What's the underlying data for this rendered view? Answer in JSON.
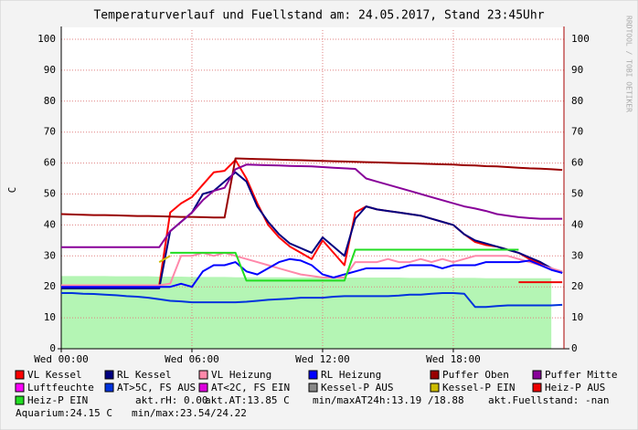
{
  "chart_data": {
    "type": "line",
    "title": "Temperaturverlauf und Fuellstand am: 24.05.2017, Stand 23:45Uhr",
    "y_label": "C",
    "watermark": "RRDTOOL / TOBI OETIKER",
    "xlim": [
      0,
      23.08
    ],
    "ylim": [
      0,
      100
    ],
    "xticks": [
      {
        "value": 0,
        "label": "Wed 00:00"
      },
      {
        "value": 6,
        "label": "Wed 06:00"
      },
      {
        "value": 12,
        "label": "Wed 12:00"
      },
      {
        "value": 18,
        "label": "Wed 18:00"
      }
    ],
    "yticks": [
      0,
      10,
      20,
      30,
      40,
      50,
      60,
      70,
      80,
      90,
      100
    ],
    "grid": true,
    "x": [
      0,
      0.5,
      1,
      1.5,
      2,
      2.5,
      3,
      3.5,
      4,
      4.5,
      5,
      5.5,
      6,
      6.5,
      7,
      7.5,
      8,
      8.5,
      9,
      9.5,
      10,
      10.5,
      11,
      11.5,
      12,
      12.5,
      13,
      13.5,
      14,
      14.5,
      15,
      15.5,
      16,
      16.5,
      17,
      17.5,
      18,
      18.5,
      19,
      19.5,
      20,
      20.5,
      21,
      21.5,
      22,
      22.5,
      23
    ],
    "area": {
      "color": "#b4f5b4",
      "values": [
        23.5,
        23.5,
        23.5,
        23.5,
        23.5,
        23.4,
        23.4,
        23.4,
        23.4,
        23.3,
        23.3,
        23.3,
        23.2,
        23.2,
        23.2,
        23.2,
        23.1,
        23.1,
        23.1,
        23.1,
        23.1,
        23,
        23,
        23,
        23,
        23,
        23,
        23,
        23,
        23,
        23,
        23,
        22.9,
        22.9,
        22.9,
        22.9,
        22.9,
        22.9,
        22.9,
        22.8,
        22.8,
        22.8,
        22.8,
        22.8,
        22.8,
        22.8,
        null
      ]
    },
    "series": [
      {
        "name": "VL Kessel",
        "color": "#ff0000",
        "values": [
          20.5,
          20.5,
          20.5,
          20.5,
          20.5,
          20.5,
          20.5,
          20.5,
          20.5,
          20.5,
          44,
          47,
          49,
          53,
          57,
          57.5,
          61,
          55,
          47,
          40,
          36,
          33,
          31,
          29,
          35,
          31,
          27,
          44,
          46,
          45,
          44.5,
          44,
          43.5,
          43,
          42,
          41,
          40,
          37,
          34.5,
          33.5,
          33,
          32,
          31,
          29,
          27.5,
          26,
          24.5
        ]
      },
      {
        "name": "RL Kessel",
        "color": "#000080",
        "values": [
          19.5,
          19.5,
          19.5,
          19.5,
          19.5,
          19.5,
          19.5,
          19.5,
          19.5,
          19.5,
          38,
          41,
          44,
          50,
          51,
          54,
          57,
          54,
          46,
          41,
          37,
          34,
          32.5,
          31,
          36,
          33,
          30,
          42,
          46,
          45,
          44.5,
          44,
          43.5,
          43,
          42,
          41,
          40,
          37,
          35,
          34,
          33,
          32,
          31,
          29.5,
          28,
          26,
          24.5
        ]
      },
      {
        "name": "VL Heizung",
        "color": "#ff88aa",
        "values": [
          20.5,
          20.5,
          20.5,
          20.5,
          20.5,
          20.5,
          20.5,
          20.5,
          20.5,
          20.5,
          21,
          30,
          30,
          31,
          30,
          31,
          30,
          29,
          28,
          27,
          26,
          25,
          24,
          23.5,
          23,
          23,
          23,
          28,
          28,
          28,
          29,
          28,
          28,
          29,
          28,
          29,
          28,
          29,
          30,
          30,
          30,
          30,
          29,
          28,
          27,
          26,
          25
        ]
      },
      {
        "name": "RL Heizung",
        "color": "#0000ff",
        "values": [
          20,
          20,
          20,
          20,
          20,
          20,
          20,
          20,
          20,
          20,
          20,
          21,
          20,
          25,
          27,
          27,
          28,
          25,
          24,
          26,
          28,
          29,
          28.5,
          27,
          24,
          23,
          24,
          25,
          26,
          26,
          26,
          26,
          27,
          27,
          27,
          26,
          27,
          27,
          27,
          28,
          28,
          28,
          28,
          28.5,
          27,
          25.5,
          24.5
        ]
      },
      {
        "name": "Puffer Oben",
        "color": "#990000",
        "values": [
          43.5,
          43.4,
          43.3,
          43.2,
          43.2,
          43.1,
          43,
          42.9,
          42.9,
          42.8,
          42.7,
          42.6,
          42.6,
          42.5,
          42.4,
          42.4,
          61.5,
          61.4,
          61.3,
          61.2,
          61.1,
          61,
          60.9,
          60.8,
          60.7,
          60.6,
          60.5,
          60.4,
          60.3,
          60.2,
          60.1,
          60,
          59.9,
          59.8,
          59.7,
          59.6,
          59.5,
          59.3,
          59.2,
          59,
          58.9,
          58.7,
          58.5,
          58.3,
          58.2,
          58,
          57.8
        ]
      },
      {
        "name": "Puffer Mitte",
        "color": "#880099",
        "values": [
          32.8,
          32.8,
          32.8,
          32.8,
          32.8,
          32.8,
          32.8,
          32.8,
          32.8,
          32.8,
          38,
          41,
          44,
          48,
          51,
          52,
          58,
          59.5,
          59.4,
          59.3,
          59.2,
          59.1,
          59,
          58.9,
          58.7,
          58.5,
          58.3,
          58.1,
          55,
          54,
          53,
          52,
          51,
          50,
          49,
          48,
          47,
          46,
          45.3,
          44.5,
          43.5,
          43,
          42.5,
          42.2,
          42,
          42,
          42
        ]
      },
      {
        "name": "Luftfeuchte",
        "color": "#ff00ff",
        "values": [
          null,
          null,
          null,
          null,
          null,
          null,
          null,
          null,
          null,
          null,
          null,
          null,
          null,
          null,
          null,
          null,
          null,
          null,
          null,
          null,
          null,
          null,
          null,
          null,
          null,
          null,
          null,
          null,
          null,
          null,
          null,
          null,
          null,
          null,
          null,
          null,
          null,
          null,
          null,
          null,
          null,
          null,
          null,
          null,
          null,
          null,
          null
        ]
      },
      {
        "name": "AT>5C, FS AUS",
        "color": "#0033dd",
        "values": [
          18,
          18,
          17.8,
          17.7,
          17.5,
          17.3,
          17,
          16.8,
          16.5,
          16,
          15.5,
          15.3,
          15,
          15,
          15,
          15,
          15,
          15.2,
          15.5,
          15.8,
          16,
          16.2,
          16.5,
          16.5,
          16.5,
          16.8,
          17,
          17,
          17,
          17,
          17,
          17.2,
          17.5,
          17.5,
          17.8,
          18,
          18,
          17.8,
          13.5,
          13.5,
          13.8,
          14,
          14,
          14,
          14,
          14,
          14.2
        ]
      },
      {
        "name": "AT<2C, FS EIN",
        "color": "#dd00dd",
        "values": [
          null,
          null,
          null,
          null,
          null,
          null,
          null,
          null,
          null,
          null,
          null,
          null,
          null,
          null,
          null,
          null,
          null,
          null,
          null,
          null,
          null,
          null,
          null,
          null,
          null,
          null,
          null,
          null,
          null,
          null,
          null,
          null,
          null,
          null,
          null,
          null,
          null,
          null,
          null,
          null,
          null,
          null,
          null,
          null,
          null,
          null,
          null
        ]
      },
      {
        "name": "Kessel-P AUS",
        "color": "#888888",
        "values": [
          null,
          null,
          null,
          null,
          null,
          null,
          null,
          null,
          null,
          null,
          null,
          null,
          null,
          null,
          null,
          null,
          null,
          null,
          null,
          null,
          null,
          null,
          null,
          null,
          null,
          null,
          null,
          null,
          null,
          null,
          null,
          null,
          null,
          null,
          null,
          null,
          null,
          null,
          null,
          null,
          null,
          null,
          null,
          null,
          null,
          null,
          null
        ]
      },
      {
        "name": "Kessel-P EIN",
        "color": "#ccbb00",
        "values": [
          null,
          null,
          null,
          null,
          null,
          null,
          null,
          null,
          null,
          28,
          30,
          null,
          null,
          null,
          null,
          null,
          null,
          null,
          null,
          null,
          null,
          null,
          null,
          null,
          null,
          null,
          null,
          null,
          null,
          null,
          null,
          null,
          null,
          null,
          null,
          null,
          null,
          null,
          null,
          null,
          null,
          null,
          null,
          null,
          null,
          null,
          null
        ]
      },
      {
        "name": "Heiz-P AUS",
        "color": "#ee0000",
        "values": [
          null,
          null,
          null,
          null,
          null,
          null,
          null,
          null,
          null,
          null,
          null,
          null,
          null,
          null,
          null,
          null,
          null,
          null,
          null,
          null,
          null,
          null,
          null,
          null,
          null,
          null,
          null,
          null,
          null,
          null,
          null,
          null,
          null,
          null,
          null,
          null,
          null,
          null,
          null,
          null,
          null,
          null,
          21.5,
          21.5,
          21.5,
          21.5,
          21.5
        ]
      },
      {
        "name": "Heiz-P EIN",
        "color": "#22dd22",
        "values": [
          null,
          null,
          null,
          null,
          null,
          null,
          null,
          null,
          null,
          null,
          31,
          31,
          31,
          31,
          31,
          31,
          31,
          22,
          22,
          22,
          22,
          22,
          22,
          22,
          22,
          22,
          22,
          32,
          32,
          32,
          32,
          32,
          32,
          32,
          32,
          32,
          32,
          32,
          32,
          32,
          32,
          32,
          32,
          null,
          null,
          null,
          null
        ]
      }
    ],
    "notes": [
      "akt.rH: 0.00",
      "akt.AT:13.85 C",
      "min/maxAT24h:13.19 /18.88",
      "akt.Fuellstand: -nan",
      "Aquarium:24.15 C",
      "min/max:23.54/24.22"
    ]
  }
}
